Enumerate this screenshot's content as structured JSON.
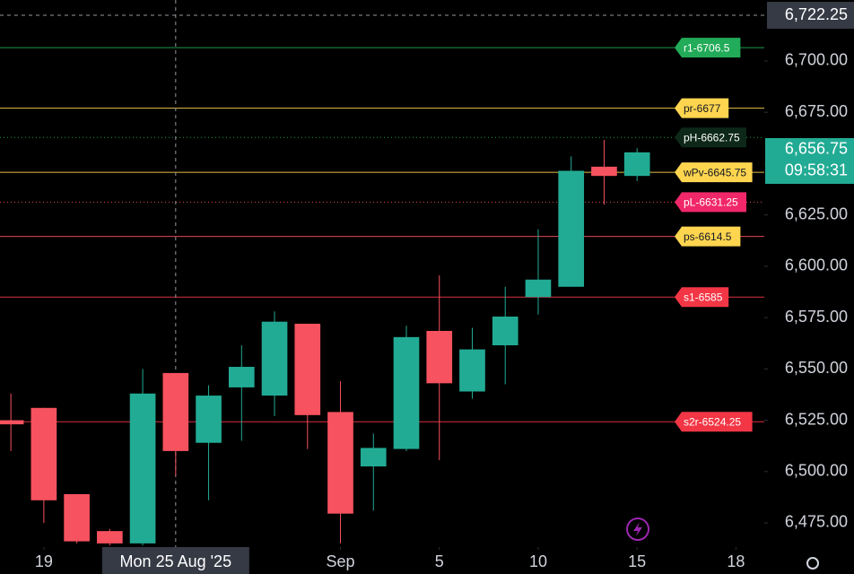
{
  "chart_data": {
    "type": "candlestick",
    "up_color": "#22ab94",
    "down_color": "#f7525f",
    "open": [
      6525,
      6531,
      6489,
      6471,
      6465,
      6548,
      6514,
      6541,
      6537,
      6572,
      6529,
      6502.5,
      6511,
      6568.5,
      6539,
      6561.5,
      6585,
      6590,
      6648.5,
      6644
    ],
    "high": [
      6538,
      6531,
      6489,
      6472,
      6550,
      6548,
      6542,
      6561.5,
      6578,
      6572,
      6544,
      6518.5,
      6571,
      6595.5,
      6570,
      6590,
      6618,
      6653.5,
      6661.5,
      6657.5
    ],
    "low": [
      6510,
      6475,
      6465,
      6464,
      6464,
      6498,
      6486,
      6515,
      6527,
      6511,
      6465,
      6481,
      6510,
      6505.5,
      6535.5,
      6542.5,
      6576.5,
      6590,
      6630,
      6641.5
    ],
    "close": [
      6523,
      6486,
      6466,
      6465,
      6538,
      6510,
      6537,
      6551,
      6573,
      6527.5,
      6479.5,
      6511.5,
      6565.5,
      6543,
      6559.5,
      6575.5,
      6593.5,
      6646.5,
      6644,
      6655.5
    ],
    "xlim": [
      -0.33,
      22.86
    ],
    "xticks": [
      {
        "value": 1,
        "label": "19"
      },
      {
        "value": 10,
        "label": "Sep"
      },
      {
        "value": 13,
        "label": "5"
      },
      {
        "value": 16,
        "label": "10"
      },
      {
        "value": 19,
        "label": "15"
      },
      {
        "value": 22,
        "label": "18"
      }
    ],
    "ylim": [
      6463.2,
      6729.7
    ],
    "yticks": [
      {
        "value": 6475,
        "label": "6,475.00"
      },
      {
        "value": 6500,
        "label": "6,500.00"
      },
      {
        "value": 6525,
        "label": "6,525.00"
      },
      {
        "value": 6550,
        "label": "6,550.00"
      },
      {
        "value": 6575,
        "label": "6,575.00"
      },
      {
        "value": 6600,
        "label": "6,600.00"
      },
      {
        "value": 6625,
        "label": "6,625.00"
      },
      {
        "value": 6650,
        "label": "6,650.00"
      },
      {
        "value": 6675,
        "label": "6,675.00"
      },
      {
        "value": 6700,
        "label": "6,700.00"
      }
    ],
    "levels": [
      {
        "label": "r1-6706.5",
        "value": 6706.5,
        "color": "#22ab58",
        "text_color": "#ffffff",
        "dotted": false
      },
      {
        "label": "pr-6677",
        "value": 6677,
        "color": "#ffd54f",
        "text_color": "#131722",
        "dotted": false
      },
      {
        "label": "pH-6662.75",
        "value": 6662.75,
        "color": "#0d2818",
        "line_color": "#22ab58",
        "text_color": "#ffffff",
        "dotted": true
      },
      {
        "label": "wPv-6645.75",
        "value": 6645.75,
        "color": "#ffd54f",
        "text_color": "#131722",
        "dotted": false
      },
      {
        "label": "pL-6631.25",
        "value": 6631.25,
        "color": "#f0286a",
        "line_color": "#f7525f",
        "text_color": "#ffffff",
        "dotted": true
      },
      {
        "label": "ps-6614.5",
        "value": 6614.5,
        "color": "#ffd54f",
        "line_color": "#f7525f",
        "text_color": "#131722",
        "dotted": false
      },
      {
        "label": "s1-6585",
        "value": 6585,
        "color": "#f23645",
        "text_color": "#ffffff",
        "dotted": false
      },
      {
        "label": "s2r-6524.25",
        "value": 6524.25,
        "color": "#f23645",
        "text_color": "#ffffff",
        "dotted": false
      }
    ],
    "last_price": {
      "value": 6656.75,
      "label": "6,656.75",
      "countdown": "09:58:31"
    },
    "crosshair": {
      "x": 5,
      "label": "Mon 25 Aug '25",
      "price": 6722.25,
      "price_label": "6,722.25"
    }
  }
}
